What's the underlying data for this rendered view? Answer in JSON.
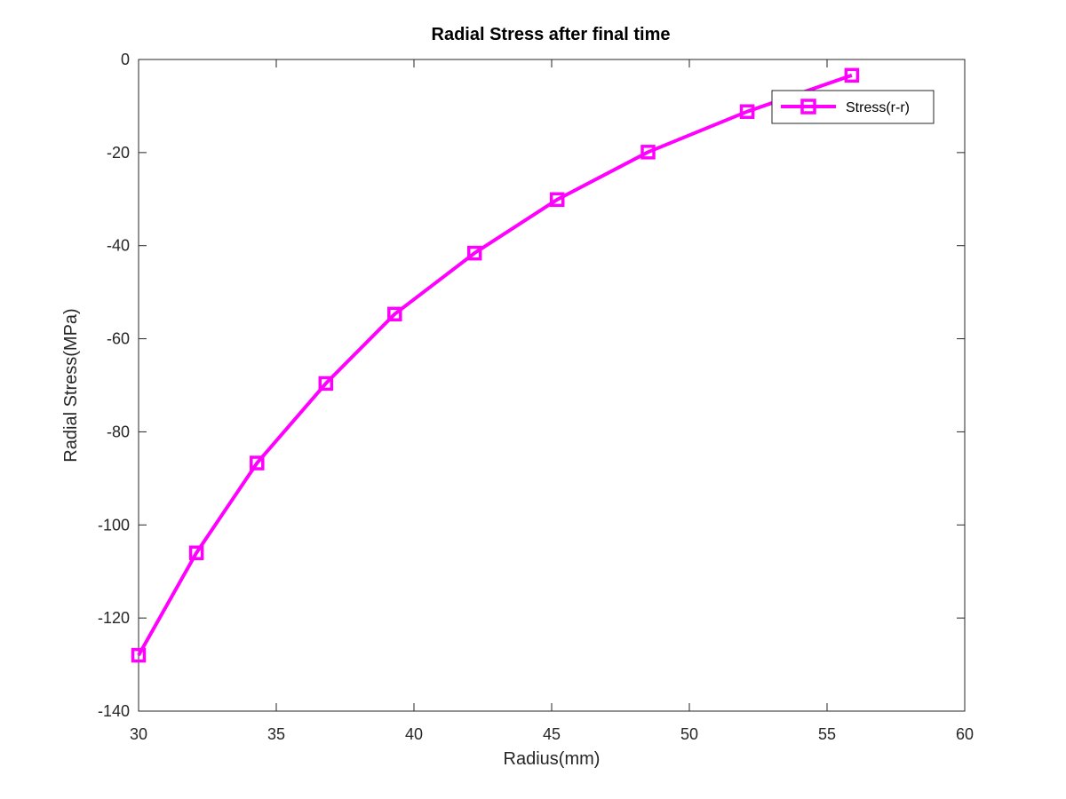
{
  "chart_data": {
    "type": "line",
    "title": "Radial Stress after final time",
    "xlabel": "Radius(mm)",
    "ylabel": "Radial Stress(MPa)",
    "xlim": [
      30,
      60
    ],
    "ylim": [
      -140,
      0
    ],
    "xticks": [
      30,
      35,
      40,
      45,
      50,
      55,
      60
    ],
    "yticks": [
      0,
      -20,
      -40,
      -60,
      -80,
      -100,
      -120,
      -140
    ],
    "grid": false,
    "legend_position": "top-right",
    "series": [
      {
        "name": "Stress(r-r)",
        "color": "#ff00ff",
        "marker": "square",
        "x": [
          30.0,
          32.1,
          34.3,
          36.8,
          39.3,
          42.2,
          45.2,
          48.5,
          52.1,
          55.9
        ],
        "y": [
          -128.0,
          -106.0,
          -86.7,
          -69.6,
          -54.7,
          -41.6,
          -30.1,
          -19.9,
          -11.2,
          -3.4
        ]
      }
    ]
  }
}
